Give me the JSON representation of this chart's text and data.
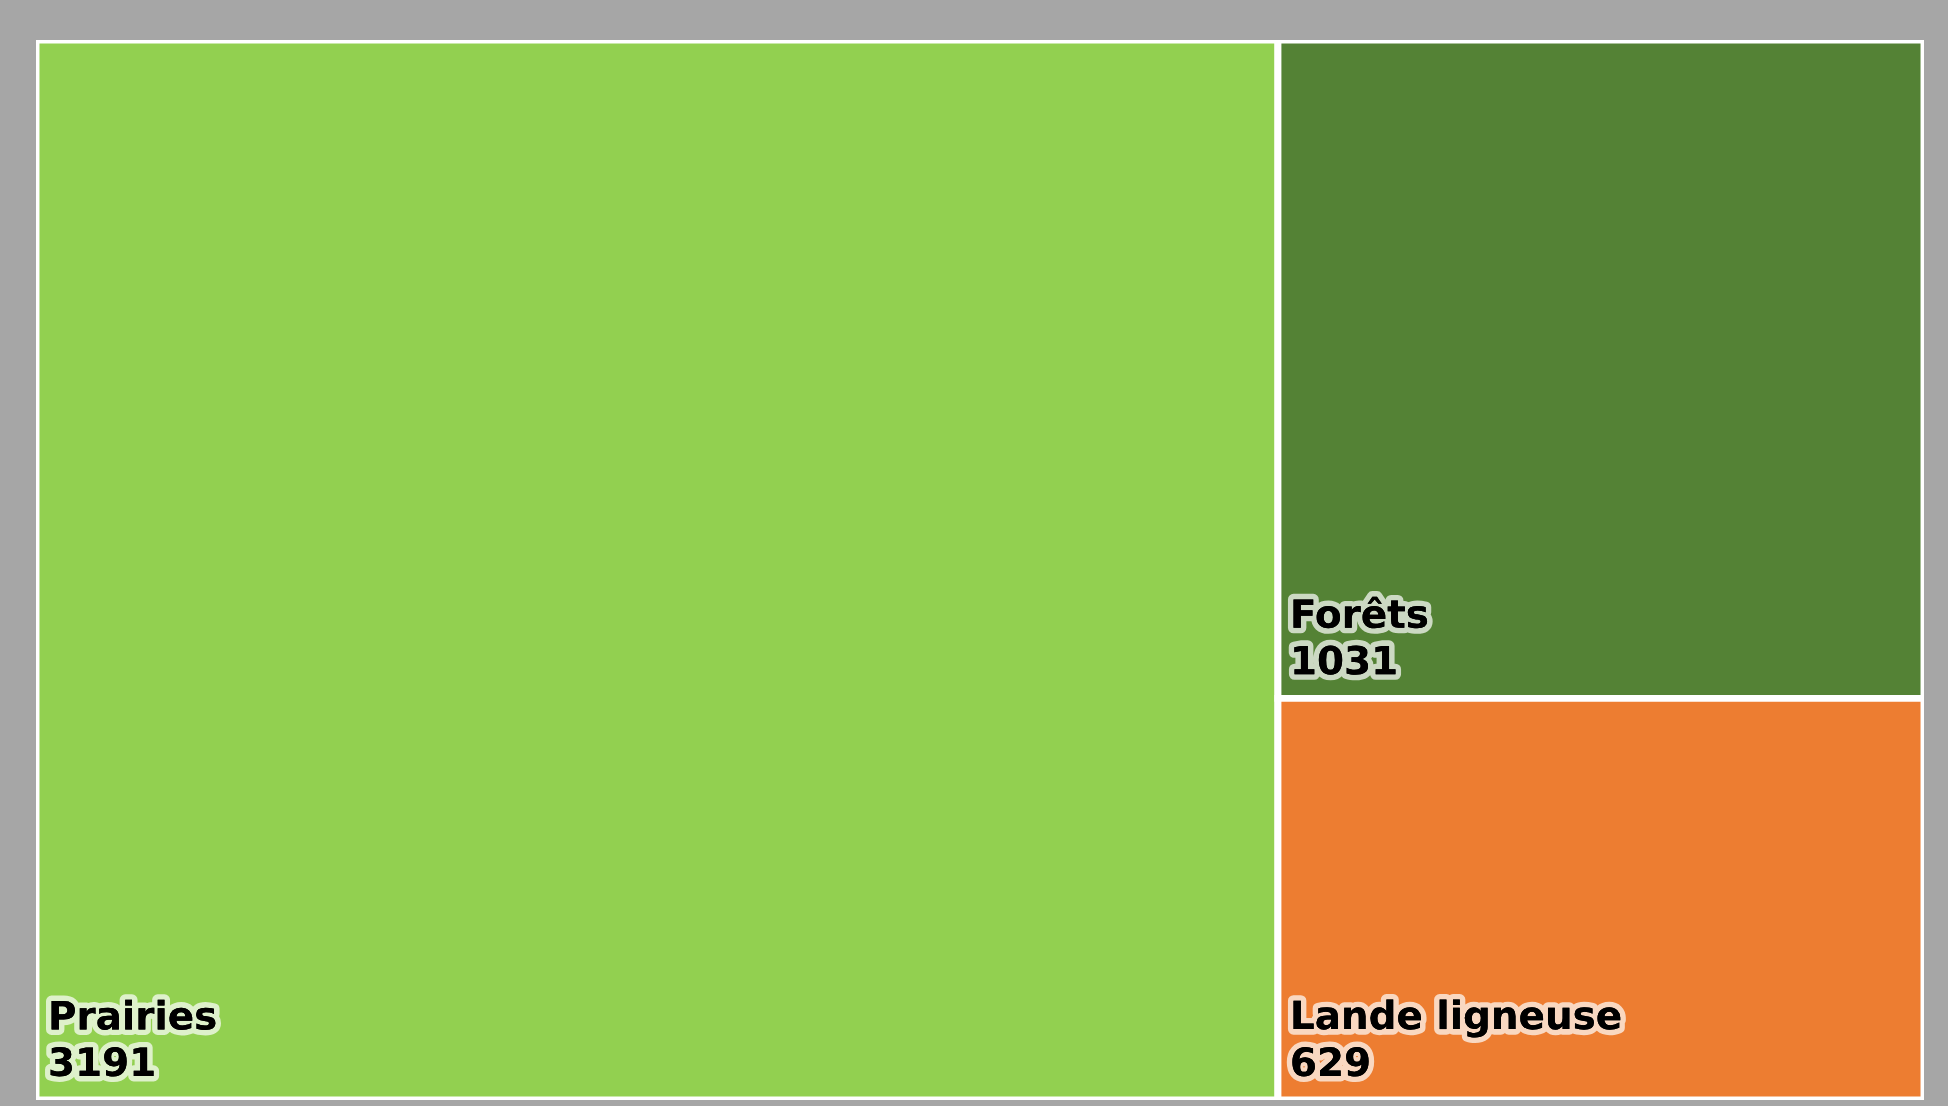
{
  "chart_data": {
    "type": "other",
    "categories": [
      "Prairies",
      "Forêts",
      "Lande ligneuse"
    ],
    "values": [
      3191,
      1031,
      629
    ],
    "colors": [
      "#92d050",
      "#548235",
      "#ed7d31"
    ],
    "data_labels": true
  }
}
